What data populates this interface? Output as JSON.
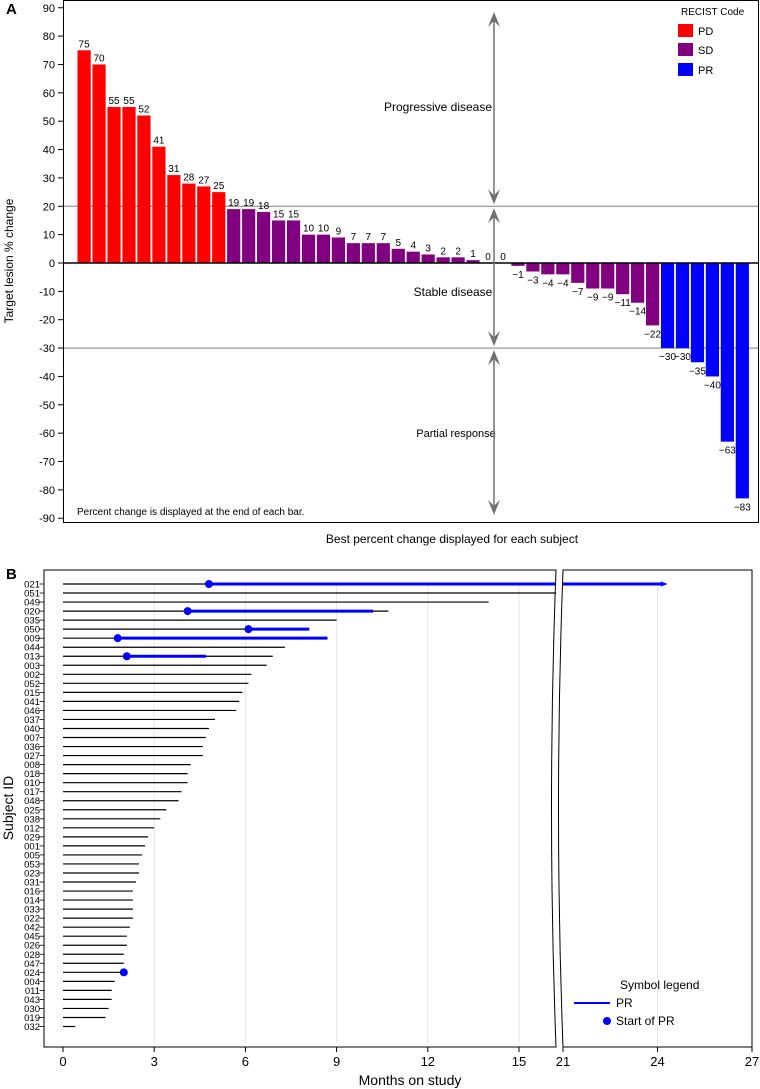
{
  "colors": {
    "PD": "#ff0000",
    "SD": "#800080",
    "PR": "#0000ff",
    "axis": "#000000",
    "guide": "#808080",
    "arrow": "#707070",
    "grid": "#e6e6e6",
    "line": "#000000"
  },
  "chart_data": [
    {
      "panel": "A",
      "type": "bar",
      "panel_label": "A",
      "ylabel": "Target lesion % change",
      "xlabel": "Best percent change displayed for each subject",
      "ylim": [
        -90,
        90
      ],
      "yticks": [
        90,
        80,
        70,
        60,
        50,
        40,
        30,
        20,
        10,
        0,
        -10,
        -20,
        -30,
        -40,
        -50,
        -60,
        -70,
        -80,
        -90
      ],
      "ytick_labels": [
        "90",
        "80",
        "70",
        "60",
        "50",
        "40",
        "30",
        "20",
        "10",
        "0",
        "-10",
        "-20",
        "-30",
        "-40",
        "-50",
        "-60",
        "-70",
        "-80",
        "-90"
      ],
      "reference_lines": [
        20,
        -30
      ],
      "values": [
        75,
        70,
        55,
        55,
        52,
        41,
        31,
        28,
        27,
        25,
        19,
        19,
        18,
        15,
        15,
        10,
        10,
        9,
        7,
        7,
        7,
        5,
        4,
        3,
        2,
        2,
        1,
        0,
        0,
        -1,
        -3,
        -4,
        -4,
        -7,
        -9,
        -9,
        -11,
        -14,
        -22,
        -30,
        -30,
        -35,
        -40,
        -63,
        -83
      ],
      "value_labels": [
        "75",
        "70",
        "55",
        "55",
        "52",
        "41",
        "31",
        "28",
        "27",
        "25",
        "19",
        "19",
        "18",
        "15",
        "15",
        "10",
        "10",
        "9",
        "7",
        "7",
        "7",
        "5",
        "4",
        "3",
        "2",
        "2",
        "1",
        "0",
        "0",
        "−1",
        "−3",
        "−4",
        "−4",
        "−7",
        "−9",
        "−9",
        "−11",
        "−14",
        "−22",
        "−30",
        "−30",
        "−35",
        "−40",
        "−63",
        "−83"
      ],
      "codes": [
        "PD",
        "PD",
        "PD",
        "PD",
        "PD",
        "PD",
        "PD",
        "PD",
        "PD",
        "PD",
        "SD",
        "SD",
        "SD",
        "SD",
        "SD",
        "SD",
        "SD",
        "SD",
        "SD",
        "SD",
        "SD",
        "SD",
        "SD",
        "SD",
        "SD",
        "SD",
        "SD",
        "SD",
        "SD",
        "SD",
        "SD",
        "SD",
        "SD",
        "SD",
        "SD",
        "SD",
        "SD",
        "SD",
        "SD",
        "PR",
        "PR",
        "PR",
        "PR",
        "PR",
        "PR"
      ],
      "legend": {
        "title": "RECIST Code",
        "entries": [
          "PD",
          "SD",
          "PR"
        ]
      },
      "annotations": {
        "progressive": "Progressive disease",
        "stable": "Stable disease",
        "partial": "Partial response",
        "footnote": "Percent change is displayed at the end of each bar."
      }
    },
    {
      "panel": "B",
      "type": "swimmer",
      "panel_label": "B",
      "ylabel": "Subject ID",
      "xlabel": "Months on study",
      "axis_break": [
        21,
        21
      ],
      "xticks": [
        0,
        3,
        6,
        9,
        12,
        15,
        21,
        24,
        27
      ],
      "xtick_labels": [
        "0",
        "3",
        "6",
        "9",
        "12",
        "15",
        "21",
        "24",
        "27"
      ],
      "subjects": [
        {
          "id": "021",
          "duration": 24.2,
          "pr_start": 4.8,
          "pr_end": 24.2
        },
        {
          "id": "051",
          "duration": 21.0
        },
        {
          "id": "049",
          "duration": 14.0
        },
        {
          "id": "020",
          "duration": 10.7,
          "pr_start": 4.1,
          "pr_end": 10.2
        },
        {
          "id": "035",
          "duration": 9.0
        },
        {
          "id": "050",
          "duration": 8.1,
          "pr_start": 6.1,
          "pr_end": 8.1
        },
        {
          "id": "009",
          "duration": 8.7,
          "pr_start": 1.8,
          "pr_end": 8.7
        },
        {
          "id": "044",
          "duration": 7.3
        },
        {
          "id": "013",
          "duration": 6.9,
          "pr_start": 2.1,
          "pr_end": 4.7
        },
        {
          "id": "003",
          "duration": 6.7
        },
        {
          "id": "002",
          "duration": 6.2
        },
        {
          "id": "052",
          "duration": 6.1
        },
        {
          "id": "015",
          "duration": 5.9
        },
        {
          "id": "041",
          "duration": 5.8
        },
        {
          "id": "046",
          "duration": 5.7
        },
        {
          "id": "037",
          "duration": 5.0
        },
        {
          "id": "040",
          "duration": 4.8
        },
        {
          "id": "007",
          "duration": 4.7
        },
        {
          "id": "036",
          "duration": 4.6
        },
        {
          "id": "027",
          "duration": 4.6
        },
        {
          "id": "008",
          "duration": 4.2
        },
        {
          "id": "018",
          "duration": 4.1
        },
        {
          "id": "010",
          "duration": 4.1
        },
        {
          "id": "017",
          "duration": 3.9
        },
        {
          "id": "048",
          "duration": 3.8
        },
        {
          "id": "025",
          "duration": 3.4
        },
        {
          "id": "038",
          "duration": 3.2
        },
        {
          "id": "012",
          "duration": 3.0
        },
        {
          "id": "029",
          "duration": 2.8
        },
        {
          "id": "001",
          "duration": 2.7
        },
        {
          "id": "005",
          "duration": 2.6
        },
        {
          "id": "053",
          "duration": 2.5
        },
        {
          "id": "023",
          "duration": 2.5
        },
        {
          "id": "031",
          "duration": 2.4
        },
        {
          "id": "016",
          "duration": 2.3
        },
        {
          "id": "014",
          "duration": 2.3
        },
        {
          "id": "033",
          "duration": 2.3
        },
        {
          "id": "022",
          "duration": 2.3
        },
        {
          "id": "042",
          "duration": 2.2
        },
        {
          "id": "045",
          "duration": 2.1
        },
        {
          "id": "026",
          "duration": 2.1
        },
        {
          "id": "028",
          "duration": 2.0
        },
        {
          "id": "047",
          "duration": 2.0
        },
        {
          "id": "024",
          "duration": 2.0,
          "pr_start": 2.0
        },
        {
          "id": "004",
          "duration": 1.7
        },
        {
          "id": "011",
          "duration": 1.6
        },
        {
          "id": "043",
          "duration": 1.6
        },
        {
          "id": "030",
          "duration": 1.5
        },
        {
          "id": "019",
          "duration": 1.4
        },
        {
          "id": "032",
          "duration": 0.4
        }
      ],
      "legend": {
        "title": "Symbol legend",
        "pr_label": "PR",
        "start_label": "Start of PR"
      }
    }
  ]
}
